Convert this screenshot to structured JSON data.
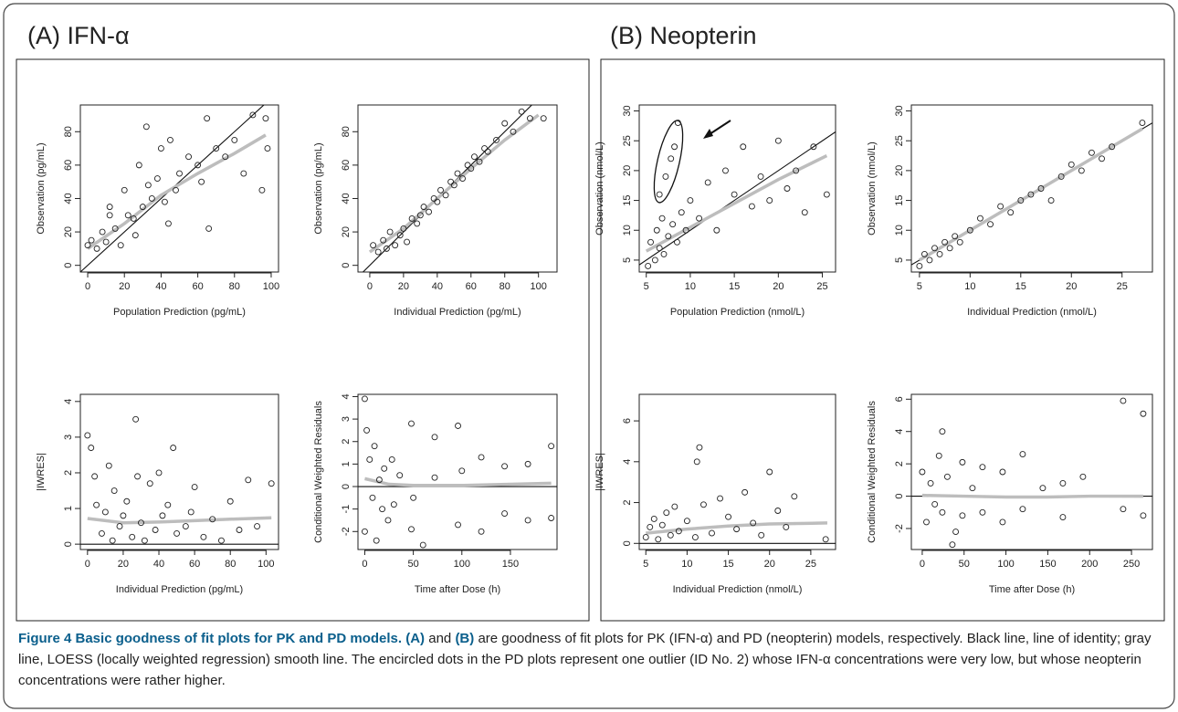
{
  "panels": [
    "(A) IFN-α",
    "(B) Neopterin"
  ],
  "chart_data": [
    {
      "type": "scatter",
      "panel": 0,
      "xlabel": "Population Prediction (pg/mL)",
      "ylabel": "Observation (pg/mL)",
      "xlim": [
        -4,
        104
      ],
      "ylim": [
        -4,
        96
      ],
      "xticks": [
        0,
        20,
        40,
        60,
        80,
        100
      ],
      "yticks": [
        0,
        20,
        40,
        60,
        80
      ],
      "reference": "identity",
      "x": [
        0,
        2,
        5,
        8,
        10,
        12,
        15,
        18,
        20,
        22,
        25,
        28,
        30,
        32,
        35,
        38,
        40,
        42,
        45,
        48,
        50,
        55,
        60,
        62,
        65,
        70,
        75,
        80,
        85,
        90,
        95,
        97,
        98,
        33,
        12,
        26,
        44,
        66
      ],
      "values": [
        12,
        15,
        10,
        20,
        14,
        35,
        22,
        12,
        45,
        30,
        28,
        60,
        35,
        83,
        40,
        52,
        70,
        38,
        75,
        45,
        55,
        65,
        60,
        50,
        88,
        70,
        65,
        75,
        55,
        90,
        45,
        88,
        70,
        48,
        30,
        18,
        25,
        22
      ],
      "smooth": {
        "color": "#bdbdbd",
        "x": [
          0,
          20,
          40,
          60,
          80,
          97
        ],
        "values": [
          10,
          25,
          42,
          55,
          67,
          78
        ]
      }
    },
    {
      "type": "scatter",
      "panel": 0,
      "xlabel": "Individual Prediction (pg/mL)",
      "ylabel": "Observation (pg/mL)",
      "xlim": [
        -7,
        111
      ],
      "ylim": [
        -4,
        96
      ],
      "xticks": [
        0,
        20,
        40,
        60,
        80,
        100
      ],
      "yticks": [
        0,
        20,
        40,
        60,
        80
      ],
      "reference": "identity",
      "x": [
        2,
        5,
        8,
        10,
        12,
        15,
        18,
        20,
        22,
        25,
        28,
        30,
        32,
        35,
        38,
        40,
        42,
        45,
        48,
        50,
        52,
        55,
        58,
        60,
        62,
        65,
        68,
        70,
        75,
        80,
        85,
        90,
        95,
        103
      ],
      "values": [
        12,
        8,
        15,
        10,
        20,
        12,
        18,
        22,
        14,
        28,
        25,
        30,
        35,
        32,
        40,
        38,
        45,
        42,
        50,
        48,
        55,
        52,
        60,
        58,
        65,
        62,
        70,
        68,
        75,
        85,
        80,
        92,
        88,
        88
      ],
      "smooth": {
        "color": "#bdbdbd",
        "x": [
          0,
          20,
          40,
          60,
          80,
          100
        ],
        "values": [
          8,
          22,
          40,
          58,
          75,
          90
        ]
      }
    },
    {
      "type": "scatter",
      "panel": 0,
      "xlabel": "Individual Prediction (pg/mL)",
      "ylabel": "|IWRES|",
      "xlim": [
        -4,
        107
      ],
      "ylim": [
        -0.15,
        4.2
      ],
      "xticks": [
        0,
        20,
        40,
        60,
        80,
        100
      ],
      "yticks": [
        0,
        1,
        2,
        3,
        4
      ],
      "reference": "zero",
      "x": [
        0,
        2,
        4,
        5,
        8,
        10,
        12,
        14,
        15,
        18,
        20,
        22,
        25,
        27,
        28,
        30,
        32,
        35,
        38,
        40,
        42,
        45,
        48,
        50,
        55,
        58,
        60,
        65,
        70,
        75,
        80,
        85,
        90,
        95,
        103
      ],
      "values": [
        3.05,
        2.7,
        1.9,
        1.1,
        0.3,
        0.9,
        2.2,
        0.1,
        1.5,
        0.5,
        0.8,
        1.2,
        0.2,
        3.5,
        1.9,
        0.6,
        0.1,
        1.7,
        0.4,
        2.0,
        0.8,
        1.1,
        2.7,
        0.3,
        0.5,
        0.9,
        1.6,
        0.2,
        0.7,
        0.1,
        1.2,
        0.4,
        1.8,
        0.5,
        1.7
      ],
      "smooth": {
        "color": "#bdbdbd",
        "x": [
          0,
          20,
          40,
          60,
          80,
          103
        ],
        "values": [
          0.72,
          0.6,
          0.62,
          0.66,
          0.7,
          0.74
        ]
      }
    },
    {
      "type": "scatter",
      "panel": 0,
      "xlabel": "Time after Dose (h)",
      "ylabel": "Conditional Weighted Residuals",
      "xlim": [
        -7,
        198
      ],
      "ylim": [
        -2.8,
        4.1
      ],
      "xticks": [
        0,
        50,
        100,
        150
      ],
      "yticks": [
        -2,
        -1,
        0,
        1,
        2,
        3,
        4
      ],
      "reference": "zero",
      "x": [
        0,
        0,
        2,
        5,
        8,
        10,
        12,
        15,
        18,
        20,
        24,
        28,
        30,
        36,
        48,
        48,
        50,
        60,
        72,
        72,
        96,
        96,
        100,
        120,
        120,
        144,
        144,
        168,
        168,
        192,
        192
      ],
      "values": [
        3.9,
        -2.0,
        2.5,
        1.2,
        -0.5,
        1.8,
        -2.4,
        0.3,
        -1.0,
        0.8,
        -1.5,
        1.2,
        -0.8,
        0.5,
        2.8,
        -1.9,
        -0.5,
        -2.6,
        2.2,
        0.4,
        2.7,
        -1.7,
        0.7,
        1.3,
        -2.0,
        0.9,
        -1.2,
        1.0,
        -1.5,
        1.8,
        -1.4
      ],
      "smooth": {
        "color": "#bdbdbd",
        "x": [
          0,
          25,
          50,
          100,
          150,
          192
        ],
        "values": [
          0.35,
          0.1,
          0.05,
          0.05,
          0.1,
          0.15
        ]
      }
    },
    {
      "type": "scatter",
      "panel": 1,
      "xlabel": "Population Prediction (nmol/L)",
      "ylabel": "Observation (nmol/L)",
      "xlim": [
        4.2,
        26.5
      ],
      "ylim": [
        3,
        31
      ],
      "xticks": [
        5,
        10,
        15,
        20,
        25
      ],
      "yticks": [
        5,
        10,
        15,
        20,
        25,
        30
      ],
      "reference": "identity",
      "x": [
        5.2,
        5.5,
        6,
        6.2,
        6.5,
        6.8,
        7,
        7.5,
        8,
        8.5,
        9,
        9.5,
        10,
        11,
        12,
        13,
        14,
        15,
        16,
        17,
        18,
        19,
        20,
        21,
        22,
        23,
        24,
        25.5,
        6.5,
        7.2,
        7.8,
        8.2,
        8.6
      ],
      "values": [
        4,
        8,
        5,
        10,
        7,
        12,
        6,
        9,
        11,
        8,
        13,
        10,
        15,
        12,
        18,
        10,
        20,
        16,
        24,
        14,
        19,
        15,
        25,
        17,
        20,
        13,
        24,
        16,
        16,
        19,
        22,
        24,
        28
      ],
      "smooth": {
        "color": "#bdbdbd",
        "x": [
          5,
          10,
          15,
          20,
          25.5
        ],
        "values": [
          6.5,
          10.5,
          14.5,
          18.5,
          22.5
        ]
      }
    },
    {
      "type": "scatter",
      "panel": 1,
      "xlabel": "Individual Prediction (nmol/L)",
      "ylabel": "Observation (nmol/L)",
      "xlim": [
        4.2,
        28
      ],
      "ylim": [
        3,
        31
      ],
      "xticks": [
        5,
        10,
        15,
        20,
        25
      ],
      "yticks": [
        5,
        10,
        15,
        20,
        25,
        30
      ],
      "reference": "identity",
      "x": [
        5,
        5.5,
        6,
        6.5,
        7,
        7.5,
        8,
        8.5,
        9,
        10,
        11,
        12,
        13,
        14,
        15,
        16,
        17,
        18,
        19,
        20,
        21,
        22,
        23,
        24,
        27
      ],
      "values": [
        4,
        6,
        5,
        7,
        6,
        8,
        7,
        9,
        8,
        10,
        12,
        11,
        14,
        13,
        15,
        16,
        17,
        15,
        19,
        21,
        20,
        23,
        22,
        24,
        28
      ],
      "smooth": {
        "color": "#bdbdbd",
        "x": [
          5,
          10,
          15,
          20,
          27
        ],
        "values": [
          5,
          10,
          15,
          20,
          27
        ]
      }
    },
    {
      "type": "scatter",
      "panel": 1,
      "xlabel": "Individual Prediction (nmol/L)",
      "ylabel": "|IWRES|",
      "xlim": [
        4.2,
        28
      ],
      "ylim": [
        -0.3,
        7.3
      ],
      "xticks": [
        5,
        10,
        15,
        20,
        25
      ],
      "yticks": [
        0,
        2,
        4,
        6
      ],
      "reference": "zero",
      "x": [
        5,
        5.5,
        6,
        6.5,
        7,
        7.5,
        8,
        8.5,
        9,
        10,
        11,
        11.2,
        11.5,
        12,
        13,
        14,
        15,
        16,
        17,
        18,
        19,
        20,
        21,
        22,
        23,
        26.8
      ],
      "values": [
        0.3,
        0.8,
        1.2,
        0.2,
        0.9,
        1.5,
        0.4,
        1.8,
        0.6,
        1.1,
        0.3,
        4.0,
        4.7,
        1.9,
        0.5,
        2.2,
        1.3,
        0.7,
        2.5,
        1.0,
        0.4,
        3.5,
        1.6,
        0.8,
        2.3,
        0.2
      ],
      "smooth": {
        "color": "#bdbdbd",
        "x": [
          5,
          10,
          15,
          20,
          27
        ],
        "values": [
          0.5,
          0.7,
          0.85,
          0.95,
          1.0
        ]
      }
    },
    {
      "type": "scatter",
      "panel": 1,
      "xlabel": "Time after Dose (h)",
      "ylabel": "Conditional Weighted Residuals",
      "xlim": [
        -13,
        275
      ],
      "ylim": [
        -3.3,
        6.3
      ],
      "xticks": [
        0,
        50,
        100,
        150,
        200,
        250
      ],
      "yticks": [
        -2,
        0,
        2,
        4,
        6
      ],
      "reference": "zero",
      "x": [
        0,
        5,
        10,
        15,
        20,
        24,
        24,
        30,
        36,
        40,
        48,
        48,
        60,
        72,
        72,
        96,
        96,
        120,
        120,
        144,
        168,
        168,
        192,
        240,
        240,
        264,
        264
      ],
      "values": [
        1.5,
        -1.6,
        0.8,
        -0.5,
        2.5,
        4.0,
        -1.0,
        1.2,
        -3.0,
        -2.2,
        2.1,
        -1.2,
        0.5,
        1.8,
        -1.0,
        1.5,
        -1.6,
        2.6,
        -0.8,
        0.5,
        0.8,
        -1.3,
        1.2,
        5.9,
        -0.8,
        5.1,
        -1.2
      ],
      "smooth": {
        "color": "#bdbdbd",
        "x": [
          0,
          50,
          100,
          150,
          200,
          264
        ],
        "values": [
          0.05,
          0,
          -0.05,
          -0.05,
          0,
          0
        ]
      }
    }
  ],
  "caption": [
    {
      "text": "Figure 4 Basic goodness of fit plots for PK and PD models.",
      "bold": true
    },
    {
      "text": "(A)",
      "bold": true
    },
    {
      "text": "and",
      "bold": false
    },
    {
      "text": "(B)",
      "bold": true
    },
    {
      "text": "are goodness of fit plots for PK (IFN-α) and PD (neopterin) models, respectively. Black line, line of identity; gray line, LOESS (locally weighted regression) smooth line. The encircled dots in the PD plots represent one outlier (ID No. 2) whose IFN-α concentrations were very low, but whose neopterin concentrations were rather higher.",
      "bold": false
    }
  ]
}
